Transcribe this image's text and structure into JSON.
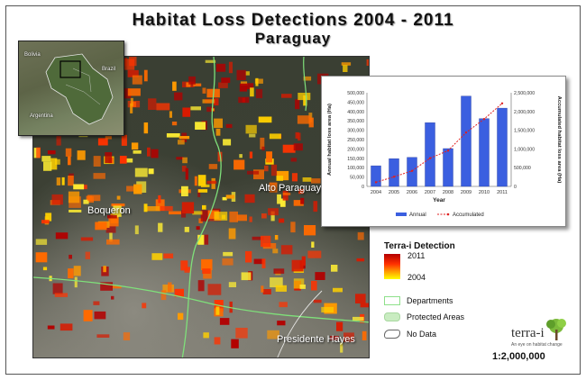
{
  "title": {
    "line1": "Habitat Loss Detections 2004 - 2011",
    "line2": "Paraguay"
  },
  "inset": {
    "labels": [
      "Bolivia",
      "Brazil",
      "Argentina"
    ]
  },
  "map": {
    "labels": [
      "Alto Paraguay",
      "Boqueron",
      "Presidente Hayes"
    ]
  },
  "chart_data": {
    "type": "bar",
    "categories": [
      "2004",
      "2005",
      "2006",
      "2007",
      "2008",
      "2009",
      "2010",
      "2011"
    ],
    "series": [
      {
        "name": "Annual",
        "type": "bar",
        "axis": "left",
        "color": "#3b5fe0",
        "values": [
          110000,
          148000,
          155000,
          340000,
          202000,
          482000,
          362000,
          418000
        ]
      },
      {
        "name": "Accumulated",
        "type": "line",
        "axis": "right",
        "color": "#e02020",
        "values": [
          110000,
          258000,
          413000,
          753000,
          955000,
          1437000,
          1799000,
          2217000
        ]
      }
    ],
    "xlabel": "Year",
    "ylabel": "Annual habitat loss area (Ha)",
    "y2label": "Accumulated habitat loss area (Ha)",
    "ylim": [
      0,
      500000
    ],
    "y2lim": [
      0,
      2500000
    ],
    "yticks": [
      "0",
      "50,000",
      "100,000",
      "150,000",
      "200,000",
      "250,000",
      "300,000",
      "350,000",
      "400,000",
      "450,000",
      "500,000"
    ],
    "y2ticks": [
      "0",
      "500,000",
      "1,000,000",
      "1,500,000",
      "2,000,000",
      "2,500,000"
    ],
    "legend": "bottom"
  },
  "legend": {
    "title": "Terra-i Detection",
    "ramp_top": "2011",
    "ramp_bottom": "2004",
    "departments": "Departments",
    "protected": "Protected Areas",
    "nodata": "No Data"
  },
  "logo": {
    "word": "terra-i",
    "tagline": "An eye on habitat change"
  },
  "scale": "1:2,000,000"
}
